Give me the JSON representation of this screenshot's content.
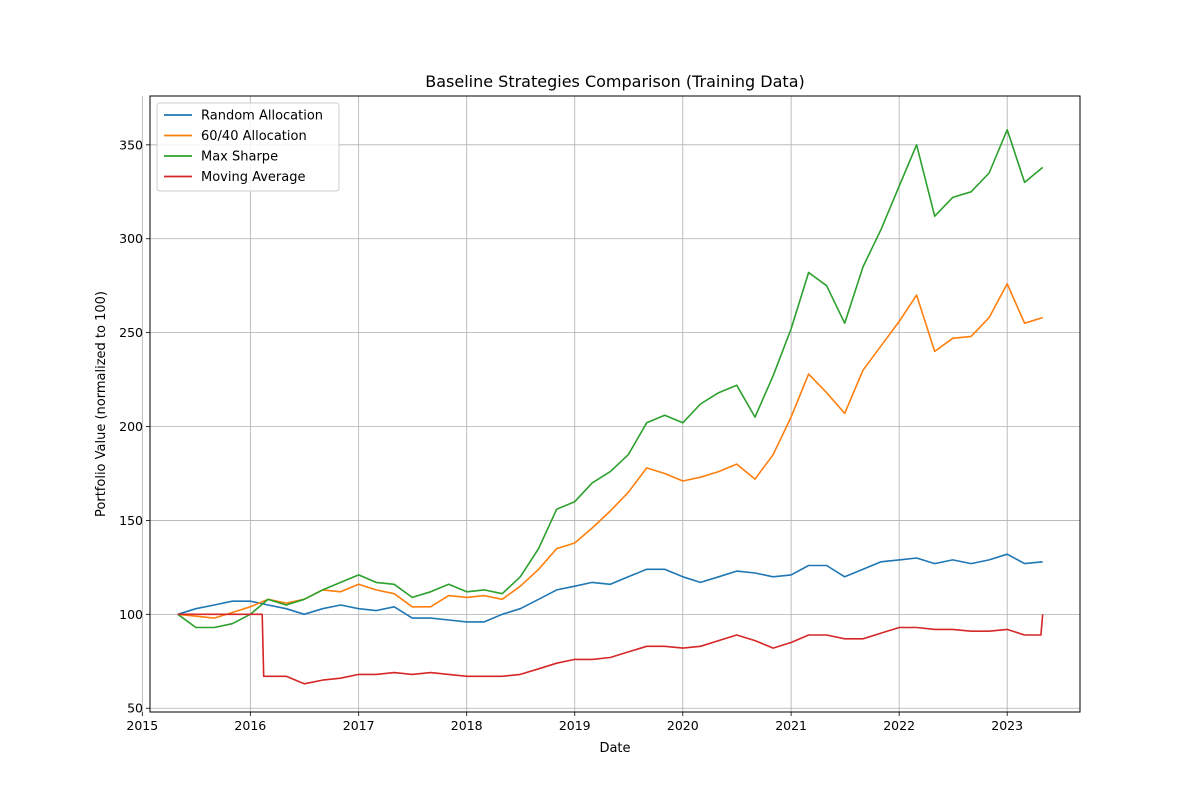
{
  "chart_data": {
    "type": "line",
    "title": "Baseline Strategies Comparison (Training Data)",
    "xlabel": "Date",
    "ylabel": "Portfolio Value (normalized to 100)",
    "xlim": [
      "2015-01-27",
      "2023-09-04"
    ],
    "ylim": [
      48,
      376
    ],
    "xticks": [
      "2015",
      "2016",
      "2017",
      "2018",
      "2019",
      "2020",
      "2021",
      "2022",
      "2023"
    ],
    "yticks": [
      50,
      100,
      150,
      200,
      250,
      300,
      350
    ],
    "grid": true,
    "legend_position": "upper left",
    "series": [
      {
        "name": "Random Allocation",
        "color": "#1f77b4",
        "points": [
          [
            "2015-05-01",
            100
          ],
          [
            "2015-07-01",
            103
          ],
          [
            "2015-09-01",
            105
          ],
          [
            "2015-11-01",
            107
          ],
          [
            "2016-01-01",
            107
          ],
          [
            "2016-03-01",
            105
          ],
          [
            "2016-05-01",
            103
          ],
          [
            "2016-07-01",
            100
          ],
          [
            "2016-09-01",
            103
          ],
          [
            "2016-11-01",
            105
          ],
          [
            "2017-01-01",
            103
          ],
          [
            "2017-03-01",
            102
          ],
          [
            "2017-05-01",
            104
          ],
          [
            "2017-07-01",
            98
          ],
          [
            "2017-09-01",
            98
          ],
          [
            "2017-11-01",
            97
          ],
          [
            "2018-01-01",
            96
          ],
          [
            "2018-03-01",
            96
          ],
          [
            "2018-05-01",
            100
          ],
          [
            "2018-07-01",
            103
          ],
          [
            "2018-09-01",
            108
          ],
          [
            "2018-11-01",
            113
          ],
          [
            "2019-01-01",
            115
          ],
          [
            "2019-03-01",
            117
          ],
          [
            "2019-05-01",
            116
          ],
          [
            "2019-07-01",
            120
          ],
          [
            "2019-09-01",
            124
          ],
          [
            "2019-11-01",
            124
          ],
          [
            "2020-01-01",
            120
          ],
          [
            "2020-03-01",
            117
          ],
          [
            "2020-05-01",
            120
          ],
          [
            "2020-07-01",
            123
          ],
          [
            "2020-09-01",
            122
          ],
          [
            "2020-11-01",
            120
          ],
          [
            "2021-01-01",
            121
          ],
          [
            "2021-03-01",
            126
          ],
          [
            "2021-05-01",
            126
          ],
          [
            "2021-07-01",
            120
          ],
          [
            "2021-09-01",
            124
          ],
          [
            "2021-11-01",
            128
          ],
          [
            "2022-01-01",
            129
          ],
          [
            "2022-03-01",
            130
          ],
          [
            "2022-05-01",
            127
          ],
          [
            "2022-07-01",
            129
          ],
          [
            "2022-09-01",
            127
          ],
          [
            "2022-11-01",
            129
          ],
          [
            "2023-01-01",
            132
          ],
          [
            "2023-03-01",
            127
          ],
          [
            "2023-05-01",
            128
          ]
        ]
      },
      {
        "name": "60/40 Allocation",
        "color": "#ff7f0e",
        "points": [
          [
            "2015-05-01",
            100
          ],
          [
            "2015-07-01",
            99
          ],
          [
            "2015-09-01",
            98
          ],
          [
            "2015-11-01",
            101
          ],
          [
            "2016-01-01",
            104
          ],
          [
            "2016-03-01",
            108
          ],
          [
            "2016-05-01",
            106
          ],
          [
            "2016-07-01",
            108
          ],
          [
            "2016-09-01",
            113
          ],
          [
            "2016-11-01",
            112
          ],
          [
            "2017-01-01",
            116
          ],
          [
            "2017-03-01",
            113
          ],
          [
            "2017-05-01",
            111
          ],
          [
            "2017-07-01",
            104
          ],
          [
            "2017-09-01",
            104
          ],
          [
            "2017-11-01",
            110
          ],
          [
            "2018-01-01",
            109
          ],
          [
            "2018-03-01",
            110
          ],
          [
            "2018-05-01",
            108
          ],
          [
            "2018-07-01",
            115
          ],
          [
            "2018-09-01",
            124
          ],
          [
            "2018-11-01",
            135
          ],
          [
            "2019-01-01",
            138
          ],
          [
            "2019-03-01",
            146
          ],
          [
            "2019-05-01",
            155
          ],
          [
            "2019-07-01",
            165
          ],
          [
            "2019-09-01",
            178
          ],
          [
            "2019-11-01",
            175
          ],
          [
            "2020-01-01",
            171
          ],
          [
            "2020-03-01",
            173
          ],
          [
            "2020-05-01",
            176
          ],
          [
            "2020-07-01",
            180
          ],
          [
            "2020-09-01",
            172
          ],
          [
            "2020-11-01",
            185
          ],
          [
            "2021-01-01",
            205
          ],
          [
            "2021-03-01",
            228
          ],
          [
            "2021-05-01",
            218
          ],
          [
            "2021-07-01",
            207
          ],
          [
            "2021-09-01",
            230
          ],
          [
            "2021-11-01",
            243
          ],
          [
            "2022-01-01",
            256
          ],
          [
            "2022-03-01",
            270
          ],
          [
            "2022-05-01",
            240
          ],
          [
            "2022-07-01",
            247
          ],
          [
            "2022-09-01",
            248
          ],
          [
            "2022-11-01",
            258
          ],
          [
            "2023-01-01",
            276
          ],
          [
            "2023-03-01",
            255
          ],
          [
            "2023-05-01",
            258
          ]
        ]
      },
      {
        "name": "Max Sharpe",
        "color": "#2ca02c",
        "points": [
          [
            "2015-05-01",
            100
          ],
          [
            "2015-07-01",
            93
          ],
          [
            "2015-09-01",
            93
          ],
          [
            "2015-11-01",
            95
          ],
          [
            "2016-01-01",
            100
          ],
          [
            "2016-03-01",
            108
          ],
          [
            "2016-05-01",
            105
          ],
          [
            "2016-07-01",
            108
          ],
          [
            "2016-09-01",
            113
          ],
          [
            "2016-11-01",
            117
          ],
          [
            "2017-01-01",
            121
          ],
          [
            "2017-03-01",
            117
          ],
          [
            "2017-05-01",
            116
          ],
          [
            "2017-07-01",
            109
          ],
          [
            "2017-09-01",
            112
          ],
          [
            "2017-11-01",
            116
          ],
          [
            "2018-01-01",
            112
          ],
          [
            "2018-03-01",
            113
          ],
          [
            "2018-05-01",
            111
          ],
          [
            "2018-07-01",
            120
          ],
          [
            "2018-09-01",
            135
          ],
          [
            "2018-11-01",
            156
          ],
          [
            "2019-01-01",
            160
          ],
          [
            "2019-03-01",
            170
          ],
          [
            "2019-05-01",
            176
          ],
          [
            "2019-07-01",
            185
          ],
          [
            "2019-09-01",
            202
          ],
          [
            "2019-11-01",
            206
          ],
          [
            "2020-01-01",
            202
          ],
          [
            "2020-03-01",
            212
          ],
          [
            "2020-05-01",
            218
          ],
          [
            "2020-07-01",
            222
          ],
          [
            "2020-09-01",
            205
          ],
          [
            "2020-11-01",
            227
          ],
          [
            "2021-01-01",
            252
          ],
          [
            "2021-03-01",
            282
          ],
          [
            "2021-05-01",
            275
          ],
          [
            "2021-07-01",
            255
          ],
          [
            "2021-09-01",
            285
          ],
          [
            "2021-11-01",
            305
          ],
          [
            "2022-01-01",
            328
          ],
          [
            "2022-03-01",
            350
          ],
          [
            "2022-05-01",
            312
          ],
          [
            "2022-07-01",
            322
          ],
          [
            "2022-09-01",
            325
          ],
          [
            "2022-11-01",
            335
          ],
          [
            "2023-01-01",
            358
          ],
          [
            "2023-03-01",
            330
          ],
          [
            "2023-05-01",
            338
          ]
        ]
      },
      {
        "name": "Moving Average",
        "color": "#d62728",
        "points": [
          [
            "2015-05-01",
            100
          ],
          [
            "2015-09-01",
            100
          ],
          [
            "2016-01-01",
            100
          ],
          [
            "2016-02-10",
            100
          ],
          [
            "2016-02-15",
            67
          ],
          [
            "2016-05-01",
            67
          ],
          [
            "2016-07-01",
            63
          ],
          [
            "2016-09-01",
            65
          ],
          [
            "2016-11-01",
            66
          ],
          [
            "2017-01-01",
            68
          ],
          [
            "2017-03-01",
            68
          ],
          [
            "2017-05-01",
            69
          ],
          [
            "2017-07-01",
            68
          ],
          [
            "2017-09-01",
            69
          ],
          [
            "2017-11-01",
            68
          ],
          [
            "2018-01-01",
            67
          ],
          [
            "2018-03-01",
            67
          ],
          [
            "2018-05-01",
            67
          ],
          [
            "2018-07-01",
            68
          ],
          [
            "2018-09-01",
            71
          ],
          [
            "2018-11-01",
            74
          ],
          [
            "2019-01-01",
            76
          ],
          [
            "2019-03-01",
            76
          ],
          [
            "2019-05-01",
            77
          ],
          [
            "2019-07-01",
            80
          ],
          [
            "2019-09-01",
            83
          ],
          [
            "2019-11-01",
            83
          ],
          [
            "2020-01-01",
            82
          ],
          [
            "2020-03-01",
            83
          ],
          [
            "2020-05-01",
            86
          ],
          [
            "2020-07-01",
            89
          ],
          [
            "2020-09-01",
            86
          ],
          [
            "2020-11-01",
            82
          ],
          [
            "2021-01-01",
            85
          ],
          [
            "2021-03-01",
            89
          ],
          [
            "2021-05-01",
            89
          ],
          [
            "2021-07-01",
            87
          ],
          [
            "2021-09-01",
            87
          ],
          [
            "2021-11-01",
            90
          ],
          [
            "2022-01-01",
            93
          ],
          [
            "2022-03-01",
            93
          ],
          [
            "2022-05-01",
            92
          ],
          [
            "2022-07-01",
            92
          ],
          [
            "2022-09-01",
            91
          ],
          [
            "2022-11-01",
            91
          ],
          [
            "2023-01-01",
            92
          ],
          [
            "2023-03-01",
            89
          ],
          [
            "2023-04-25",
            89
          ],
          [
            "2023-05-01",
            100
          ]
        ]
      }
    ]
  }
}
